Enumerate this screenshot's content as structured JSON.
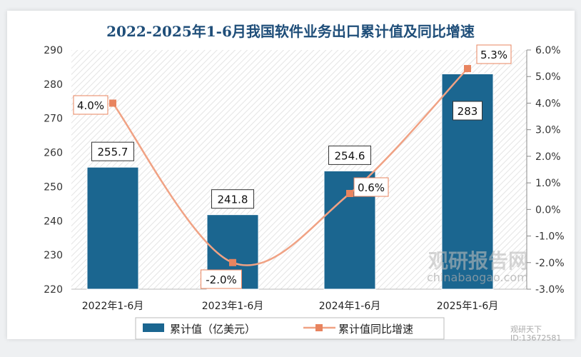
{
  "chart_data": {
    "type": "bar+line",
    "title": "2022-2025年1-6月我国软件业务出口累计值及同比增速",
    "categories": [
      "2022年1-6月",
      "2023年1-6月",
      "2024年1-6月",
      "2025年1-6月"
    ],
    "series": [
      {
        "name": "累计值（亿美元）",
        "type": "bar",
        "axis": "left",
        "values": [
          255.7,
          241.8,
          254.6,
          283
        ],
        "labels": [
          "255.7",
          "241.8",
          "254.6",
          "283"
        ],
        "color": "#1b6690"
      },
      {
        "name": "累计值同比增速",
        "type": "line",
        "axis": "right",
        "values": [
          4.0,
          -2.0,
          0.6,
          5.3
        ],
        "labels": [
          "4.0%",
          "-2.0%",
          "0.6%",
          "5.3%"
        ],
        "color": "#f0a284"
      }
    ],
    "left_axis": {
      "ylim": [
        220,
        290
      ],
      "ticks": [
        "220",
        "230",
        "240",
        "250",
        "260",
        "270",
        "280",
        "290"
      ]
    },
    "right_axis": {
      "ylim": [
        -3,
        6
      ],
      "ticks": [
        "-3.0%",
        "-2.0%",
        "-1.0%",
        "0.0%",
        "1.0%",
        "2.0%",
        "3.0%",
        "4.0%",
        "5.0%",
        "6.0%"
      ]
    },
    "legend": "bottom"
  },
  "watermark": {
    "brand": "观研报告网",
    "url": "chinabaogao.com",
    "account": "观研天下",
    "id": "ID:13672581"
  }
}
